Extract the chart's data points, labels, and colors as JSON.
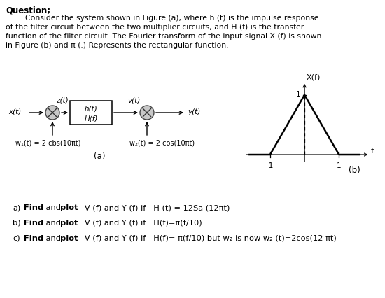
{
  "title": "Question;",
  "body_lines": [
    "        Consider the system shown in Figure (a), where h (t) is the impulse response",
    "of the filter circuit between the two multiplier circuits, and H (f) is the transfer",
    "function of the filter circuit. The Fourier transform of the input signal X (f) is shown",
    "in Figure (b) and π (.) Represents the rectangular function."
  ],
  "bg_color": "#ffffff",
  "diagram": {
    "x_t": "x(t)",
    "z_t": "z(t)",
    "v_t": "v(t)",
    "y_t": "y(t)",
    "ht": "h(t)",
    "Hf": "H(f)",
    "w1": "w₁(t) = 2 cbs(10πt)",
    "w2": "w₂(t) = 2 cos(10πt)",
    "fig_a": "(a)",
    "fig_b": "(b)"
  },
  "plot_b": {
    "xlabel": "X(f)",
    "ylabel": "f",
    "x_tick_neg": "-1",
    "x_tick_pos": "1",
    "y_tick": "1"
  },
  "questions": [
    {
      "label": "a)",
      "pre": "  ",
      "bold1": "Find",
      "mid": " and ",
      "bold2": "plot",
      "rest": "   V (f) and Y (f) if   H (t) = 12Sa (12πt)"
    },
    {
      "label": "b)",
      "pre": "  ",
      "bold1": "Find",
      "mid": " and ",
      "bold2": "plot",
      "rest": "   V (f) and Y (f) if   H(f)=π(f/10)"
    },
    {
      "label": "c)",
      "pre": "  ",
      "bold1": "Find",
      "mid": " and ",
      "bold2": "plot",
      "rest": "   V (f) and Y (f) if   H(f)= π(f/10) but w₂ is now w₂ (t)=2cos(12 πt)"
    }
  ]
}
